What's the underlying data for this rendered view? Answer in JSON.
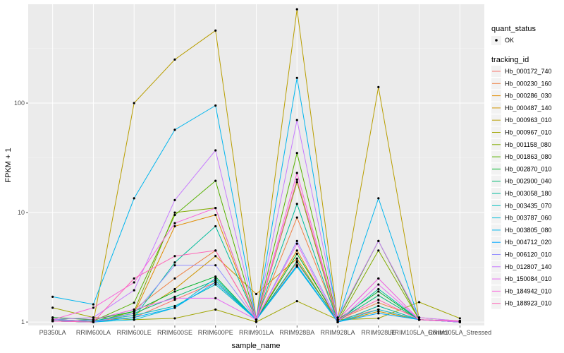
{
  "chart_data": {
    "type": "line",
    "xlabel": "sample_name",
    "ylabel": "FPKM + 1",
    "y_scale": "log10",
    "ylim": [
      0.93,
      800
    ],
    "y_ticks": [
      1,
      10,
      100
    ],
    "y_tick_labels": [
      "1",
      "10",
      "100"
    ],
    "grid": true,
    "legend_position": "right",
    "categories": [
      "PB350LA",
      "RRIM600LA",
      "RRIM600LE",
      "RRIM600SE",
      "RRIM600PE",
      "RRIM901LA",
      "RRIM928BA",
      "RRIM928LA",
      "RRIM928LE",
      "RRIM105LA_Control",
      "RRIM105LA_Stressed"
    ],
    "quant_status_legend": {
      "title": "quant_status",
      "items": [
        "OK"
      ]
    },
    "tracking_legend_title": "tracking_id",
    "series": [
      {
        "name": "Hb_000172_740",
        "color": "#F8766D",
        "values": [
          1.05,
          1.02,
          1.1,
          1.6,
          2.3,
          1.05,
          3.5,
          1.05,
          1.3,
          1.05,
          1.02
        ]
      },
      {
        "name": "Hb_000230_160",
        "color": "#EE8043",
        "values": [
          1.1,
          1.05,
          1.3,
          2.5,
          4.5,
          1.05,
          9,
          1.05,
          1.5,
          1.1,
          1.02
        ]
      },
      {
        "name": "Hb_000286_030",
        "color": "#E08B00",
        "values": [
          1.02,
          1.0,
          1.2,
          7.5,
          9.5,
          1.05,
          4.5,
          1.0,
          1.4,
          1.05,
          1.0
        ]
      },
      {
        "name": "Hb_000487_140",
        "color": "#CF9400",
        "values": [
          1.05,
          1.02,
          1.15,
          2.0,
          4.0,
          1.8,
          3.8,
          1.0,
          1.25,
          1.05,
          1.02
        ]
      },
      {
        "name": "Hb_000963_010",
        "color": "#B99E00",
        "values": [
          1.02,
          1.0,
          100,
          250,
          460,
          1.05,
          720,
          1.05,
          140,
          1.05,
          1.02
        ]
      },
      {
        "name": "Hb_000967_010",
        "color": "#A0A500",
        "values": [
          1.35,
          1.1,
          1.05,
          1.08,
          1.3,
          1.0,
          1.55,
          1.05,
          1.08,
          1.52,
          1.08
        ]
      },
      {
        "name": "Hb_001158_080",
        "color": "#81AB00",
        "values": [
          1.02,
          1.0,
          1.25,
          10,
          11,
          1.05,
          19,
          1.0,
          4.5,
          1.05,
          1.02
        ]
      },
      {
        "name": "Hb_001863_080",
        "color": "#56B100",
        "values": [
          1.05,
          1.02,
          1.5,
          9.5,
          19.5,
          1.05,
          35,
          1.05,
          5.5,
          1.05,
          1.0
        ]
      },
      {
        "name": "Hb_002870_010",
        "color": "#00B42A",
        "values": [
          1.1,
          1.05,
          1.25,
          1.9,
          2.6,
          1.05,
          4.2,
          1.05,
          1.9,
          1.05,
          1.02
        ]
      },
      {
        "name": "Hb_002900_040",
        "color": "#00B873",
        "values": [
          1.05,
          1.02,
          1.2,
          1.7,
          2.4,
          1.05,
          3.6,
          1.02,
          1.75,
          1.05,
          1.0
        ]
      },
      {
        "name": "Hb_003058_180",
        "color": "#00BB9C",
        "values": [
          1.02,
          1.0,
          1.1,
          3.5,
          7.5,
          1.05,
          12,
          1.0,
          2.0,
          1.05,
          1.02
        ]
      },
      {
        "name": "Hb_003435_070",
        "color": "#00BEBE",
        "values": [
          1.05,
          1.02,
          1.15,
          1.4,
          2.2,
          1.05,
          3.3,
          1.0,
          1.4,
          1.05,
          1.02
        ]
      },
      {
        "name": "Hb_003787_060",
        "color": "#00BCD8",
        "values": [
          1.02,
          1.0,
          1.05,
          1.35,
          2.5,
          1.05,
          3.2,
          1.0,
          1.3,
          1.05,
          1.0
        ]
      },
      {
        "name": "Hb_003805_080",
        "color": "#00B5EE",
        "values": [
          1.7,
          1.45,
          13.5,
          57,
          95,
          1.05,
          170,
          1.05,
          13.5,
          1.05,
          1.02
        ]
      },
      {
        "name": "Hb_004712_020",
        "color": "#00A9FF",
        "values": [
          1.02,
          1.0,
          1.1,
          1.35,
          2.3,
          1.05,
          3.3,
          1.0,
          1.2,
          1.05,
          1.0
        ]
      },
      {
        "name": "Hb_006120_010",
        "color": "#9590FF",
        "values": [
          1.02,
          1.0,
          1.2,
          3.3,
          3.3,
          1.05,
          5.5,
          1.05,
          2.5,
          1.05,
          1.02
        ]
      },
      {
        "name": "Hb_012807_140",
        "color": "#C77CFF",
        "values": [
          1.05,
          1.1,
          1.95,
          13,
          37,
          1.05,
          70,
          1.1,
          5.5,
          1.1,
          1.02
        ]
      },
      {
        "name": "Hb_150084_010",
        "color": "#E76BF3",
        "values": [
          1.02,
          1.05,
          1.3,
          1.65,
          1.65,
          1.05,
          5.2,
          1.0,
          2.2,
          1.05,
          1.0
        ]
      },
      {
        "name": "Hb_184942_010",
        "color": "#FA62DB",
        "values": [
          1.05,
          1.35,
          2.3,
          8,
          11,
          1.05,
          23,
          1.05,
          2.5,
          1.05,
          1.02
        ]
      },
      {
        "name": "Hb_188923_010",
        "color": "#FF63B6",
        "values": [
          1.02,
          1.0,
          2.5,
          4.0,
          4.5,
          1.05,
          20,
          1.05,
          1.6,
          1.05,
          1.02
        ]
      }
    ]
  }
}
